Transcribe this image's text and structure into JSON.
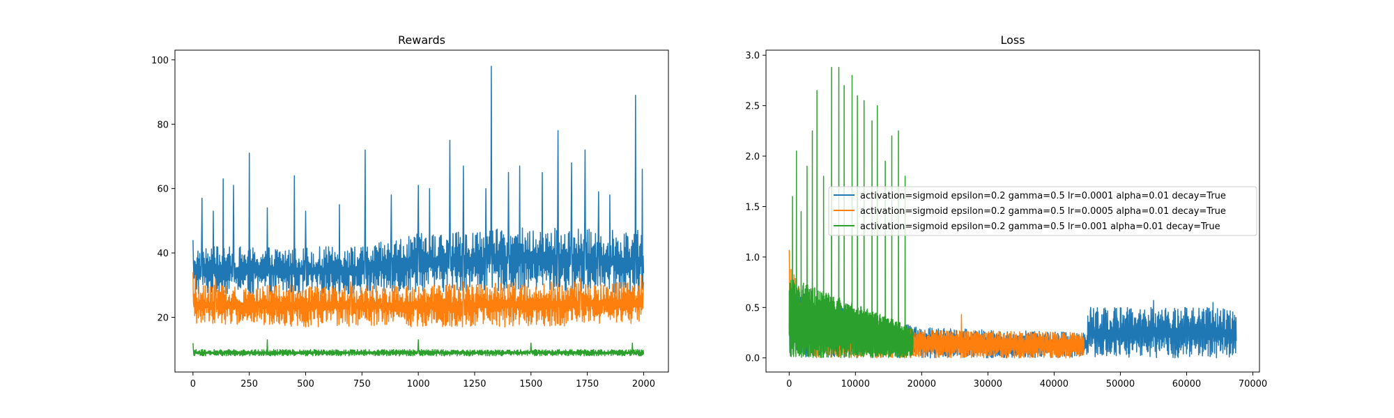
{
  "colors": {
    "blue": "#1f77b4",
    "orange": "#ff7f0e",
    "green": "#2ca02c"
  },
  "chart_data": [
    {
      "type": "line",
      "title": "Rewards",
      "xlim": [
        -80,
        2110
      ],
      "ylim": [
        3,
        103
      ],
      "xticks": [
        0,
        250,
        500,
        750,
        1000,
        1250,
        1500,
        1750,
        2000
      ],
      "xtick_labels": [
        "0",
        "250",
        "500",
        "750",
        "1000",
        "1250",
        "1500",
        "1750",
        "2000"
      ],
      "yticks": [
        20,
        40,
        60,
        80,
        100
      ],
      "ytick_labels": [
        "20",
        "40",
        "60",
        "80",
        "100"
      ],
      "legend": null,
      "series": [
        {
          "color": "#1f77b4",
          "x_range": [
            0,
            2000
          ],
          "baseline": 27,
          "band_max": 44,
          "envelope": [
            [
              0,
              27,
              42
            ],
            [
              750,
              27,
              42
            ],
            [
              1000,
              28,
              46
            ],
            [
              1500,
              28,
              48
            ],
            [
              2000,
              27,
              47
            ]
          ],
          "peaks": [
            [
              0,
              44
            ],
            [
              40,
              57
            ],
            [
              90,
              53
            ],
            [
              135,
              63
            ],
            [
              180,
              61
            ],
            [
              250,
              71
            ],
            [
              330,
              54
            ],
            [
              450,
              64
            ],
            [
              500,
              53
            ],
            [
              650,
              55
            ],
            [
              765,
              72
            ],
            [
              880,
              58
            ],
            [
              1000,
              61
            ],
            [
              1050,
              60
            ],
            [
              1140,
              75
            ],
            [
              1200,
              67
            ],
            [
              1300,
              60
            ],
            [
              1325,
              98
            ],
            [
              1400,
              65
            ],
            [
              1450,
              67
            ],
            [
              1550,
              65
            ],
            [
              1620,
              78
            ],
            [
              1680,
              68
            ],
            [
              1740,
              72
            ],
            [
              1800,
              59
            ],
            [
              1850,
              58
            ],
            [
              1965,
              89
            ],
            [
              1995,
              66
            ]
          ]
        },
        {
          "color": "#ff7f0e",
          "x_range": [
            0,
            2000
          ],
          "envelope": [
            [
              0,
              18,
              30
            ],
            [
              500,
              17,
              30
            ],
            [
              1000,
              17,
              30
            ],
            [
              1500,
              17,
              31
            ],
            [
              2000,
              18,
              31
            ]
          ],
          "peaks": [
            [
              0,
              34
            ],
            [
              10,
              33
            ],
            [
              100,
              32
            ],
            [
              430,
              30
            ],
            [
              700,
              31
            ],
            [
              1200,
              31
            ],
            [
              1720,
              32
            ],
            [
              1990,
              33
            ],
            [
              2000,
              31
            ]
          ]
        },
        {
          "color": "#2ca02c",
          "x_range": [
            0,
            2000
          ],
          "envelope": [
            [
              0,
              8,
              10
            ],
            [
              2000,
              8,
              10
            ]
          ],
          "peaks": [
            [
              0,
              12
            ],
            [
              330,
              13
            ],
            [
              1000,
              13
            ],
            [
              1500,
              12
            ],
            [
              1950,
              12
            ]
          ]
        }
      ]
    },
    {
      "type": "line",
      "title": "Loss",
      "xlim": [
        -3500,
        71000
      ],
      "ylim": [
        -0.14,
        3.05
      ],
      "xticks": [
        0,
        10000,
        20000,
        30000,
        40000,
        50000,
        60000,
        70000
      ],
      "xtick_labels": [
        "0",
        "10000",
        "20000",
        "30000",
        "40000",
        "50000",
        "60000",
        "70000"
      ],
      "yticks": [
        0.0,
        0.5,
        1.0,
        1.5,
        2.0,
        2.5,
        3.0
      ],
      "ytick_labels": [
        "0.0",
        "0.5",
        "1.0",
        "1.5",
        "2.0",
        "2.5",
        "3.0"
      ],
      "legend": "center-right",
      "series": [
        {
          "name": "activation=sigmoid epsilon=0.2 gamma=0.5 lr=0.0001 alpha=0.01 decay=True",
          "color": "#1f77b4",
          "x_range": [
            0,
            67500
          ],
          "envelope": [
            [
              0,
              0.0,
              0.7
            ],
            [
              10000,
              0.0,
              0.45
            ],
            [
              20000,
              0.0,
              0.3
            ],
            [
              45000,
              0.0,
              0.25
            ],
            [
              45100,
              0.0,
              0.5
            ],
            [
              67500,
              0.0,
              0.5
            ]
          ],
          "peaks": [
            [
              45500,
              0.5
            ],
            [
              55000,
              0.57
            ],
            [
              64000,
              0.55
            ]
          ]
        },
        {
          "name": "activation=sigmoid epsilon=0.2 gamma=0.5 lr=0.0005 alpha=0.01 decay=True",
          "color": "#ff7f0e",
          "x_range": [
            0,
            44500
          ],
          "envelope": [
            [
              0,
              0.1,
              1.0
            ],
            [
              3000,
              0.0,
              0.4
            ],
            [
              19000,
              0.0,
              0.28
            ],
            [
              44500,
              0.0,
              0.25
            ]
          ],
          "peaks": [
            [
              0,
              1.07
            ],
            [
              26000,
              0.43
            ]
          ]
        },
        {
          "name": "activation=sigmoid epsilon=0.2 gamma=0.5 lr=0.001 alpha=0.01 decay=True",
          "color": "#2ca02c",
          "x_range": [
            0,
            18700
          ],
          "envelope": [
            [
              0,
              0.0,
              0.8
            ],
            [
              18700,
              0.0,
              0.3
            ]
          ],
          "peaks": [
            [
              500,
              1.6
            ],
            [
              1100,
              2.05
            ],
            [
              1800,
              1.45
            ],
            [
              2700,
              1.9
            ],
            [
              3500,
              2.25
            ],
            [
              4200,
              2.65
            ],
            [
              5200,
              1.8
            ],
            [
              6400,
              2.88
            ],
            [
              7500,
              2.88
            ],
            [
              8300,
              2.7
            ],
            [
              9500,
              2.8
            ],
            [
              10300,
              2.6
            ],
            [
              11300,
              2.55
            ],
            [
              12500,
              2.35
            ],
            [
              13300,
              2.5
            ],
            [
              14500,
              1.95
            ],
            [
              15500,
              2.2
            ],
            [
              16500,
              2.25
            ],
            [
              17500,
              1.8
            ]
          ]
        }
      ]
    }
  ]
}
